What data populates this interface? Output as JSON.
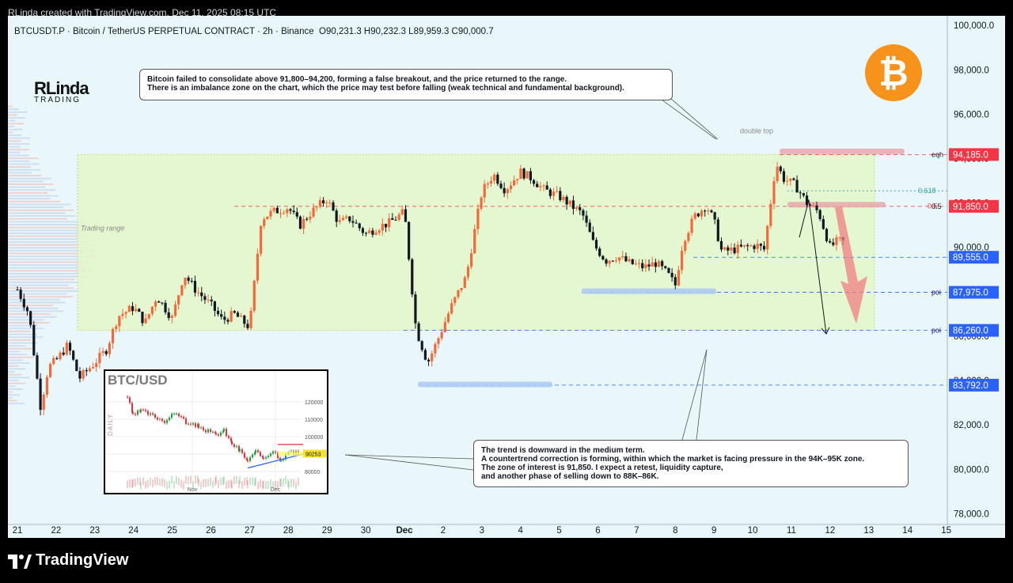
{
  "header": {
    "attribution": "RLinda created with TradingView.com, Dec 11, 2025 08:15 UTC"
  },
  "legend": {
    "symbol": "BTCUSDT.P",
    "name": "Bitcoin / TetherUS PERPETUAL CONTRACT",
    "interval": "2h",
    "exchange": "Binance",
    "ohlc": "O90,231.3 H90,232.3 L89,959.3 C90,000.7"
  },
  "brand": {
    "line1": "RLinda",
    "line2": "TRADING"
  },
  "btc_symbol": "₿",
  "callout_top": [
    "Bitcoin failed to consolidate above 91,800–94,200, forming a false breakout, and the price returned to the range.",
    "There is an imbalance zone on the chart, which the price may test before falling (weak technical and fundamental background)."
  ],
  "callout_bottom": [
    "The trend is downward in the medium term.",
    "A countertrend correction is forming, within which the market is facing pressure in the 94K–95K zone.",
    "The zone of interest is 91,850. I expect a retest, liquidity capture,",
    "and another phase of selling down to 88K–86K."
  ],
  "annotations": {
    "range": "Trading range",
    "double_top": "double top",
    "fib": "0.618",
    "fib2": "0.5"
  },
  "inset": {
    "title": "BTC/USD",
    "daily": "DAILY",
    "yticks": [
      "120000",
      "110000",
      "100000",
      "80000"
    ],
    "xticks": [
      "Nov",
      "Dec"
    ],
    "price_label": "90253"
  },
  "footer": {
    "brand": "TradingView"
  },
  "colors": {
    "up": "#f26a3a",
    "down": "#131722",
    "range_fill": "#e4f7c9",
    "accent_red": "#f23645",
    "accent_blue": "#2962ff"
  },
  "chart_data": {
    "type": "candlestick",
    "interval": "2h",
    "y_axis": {
      "ticks": [
        78000,
        80000,
        82000,
        84000,
        86000,
        88000,
        90000,
        92000,
        94000,
        96000,
        98000,
        100000
      ],
      "ylim": [
        77300,
        100400
      ]
    },
    "x_axis": {
      "ticks": [
        "21",
        "22",
        "23",
        "24",
        "25",
        "26",
        "27",
        "28",
        "29",
        "30",
        "Dec",
        "2",
        "3",
        "4",
        "5",
        "6",
        "7",
        "8",
        "9",
        "10",
        "11",
        "12",
        "13",
        "14",
        "15"
      ]
    },
    "path": [
      [
        0.0,
        88100
      ],
      [
        0.3,
        87000
      ],
      [
        0.6,
        82800
      ],
      [
        0.8,
        84600
      ],
      [
        1.0,
        84900
      ],
      [
        1.3,
        85600
      ],
      [
        1.6,
        84100
      ],
      [
        2.0,
        84800
      ],
      [
        2.3,
        85400
      ],
      [
        2.6,
        86900
      ],
      [
        3.0,
        87300
      ],
      [
        3.3,
        86600
      ],
      [
        3.6,
        87800
      ],
      [
        4.0,
        86800
      ],
      [
        4.3,
        88800
      ],
      [
        4.6,
        88100
      ],
      [
        5.0,
        87400
      ],
      [
        5.3,
        86700
      ],
      [
        5.6,
        87000
      ],
      [
        6.0,
        86400
      ],
      [
        6.3,
        91300
      ],
      [
        6.6,
        91600
      ],
      [
        7.0,
        91800
      ],
      [
        7.3,
        91000
      ],
      [
        7.6,
        91600
      ],
      [
        8.0,
        92200
      ],
      [
        8.3,
        91100
      ],
      [
        8.6,
        91300
      ],
      [
        9.0,
        90600
      ],
      [
        9.3,
        90900
      ],
      [
        9.6,
        91100
      ],
      [
        10.0,
        91600
      ],
      [
        10.3,
        86300
      ],
      [
        10.6,
        84800
      ],
      [
        10.9,
        86000
      ],
      [
        11.2,
        87300
      ],
      [
        11.6,
        88700
      ],
      [
        12.0,
        92500
      ],
      [
        12.3,
        93300
      ],
      [
        12.6,
        92600
      ],
      [
        13.0,
        93400
      ],
      [
        13.3,
        93100
      ],
      [
        13.6,
        92600
      ],
      [
        14.0,
        92300
      ],
      [
        14.3,
        91900
      ],
      [
        14.6,
        91500
      ],
      [
        14.9,
        90100
      ],
      [
        15.2,
        89400
      ],
      [
        15.5,
        89600
      ],
      [
        15.8,
        89300
      ],
      [
        16.2,
        89100
      ],
      [
        16.5,
        89300
      ],
      [
        16.8,
        88800
      ],
      [
        17.0,
        88300
      ],
      [
        17.2,
        90300
      ],
      [
        17.5,
        91400
      ],
      [
        17.8,
        91900
      ],
      [
        18.0,
        91200
      ],
      [
        18.2,
        89800
      ],
      [
        18.5,
        89900
      ],
      [
        18.8,
        90000
      ],
      [
        19.1,
        90100
      ],
      [
        19.3,
        89900
      ],
      [
        19.6,
        93800
      ],
      [
        19.8,
        93100
      ],
      [
        20.1,
        92800
      ],
      [
        20.4,
        92000
      ],
      [
        20.7,
        91600
      ],
      [
        21.0,
        90000
      ],
      [
        21.2,
        90300
      ],
      [
        21.4,
        90231
      ]
    ],
    "price_labels": [
      {
        "value": "94,185.0",
        "color": "#f23645",
        "tag": "eqh"
      },
      {
        "value": "91,850.0",
        "color": "#f23645",
        "tag": "0.5"
      },
      {
        "value": "89,555.0",
        "color": "#2962ff",
        "tag": ""
      },
      {
        "value": "87,975.0",
        "color": "#2962ff",
        "tag": "poi"
      },
      {
        "value": "86,260.0",
        "color": "#2962ff",
        "tag": "poi"
      },
      {
        "value": "83,792.0",
        "color": "#2962ff",
        "tag": ""
      }
    ],
    "levels": {
      "range_top": 94185,
      "range_bottom": 86260,
      "zone_91850": 91850,
      "fib_0618": 92550,
      "liq_89555": 89555,
      "poi_87975": 87975,
      "poi_86260": 86260,
      "low_83792": 83792
    }
  }
}
